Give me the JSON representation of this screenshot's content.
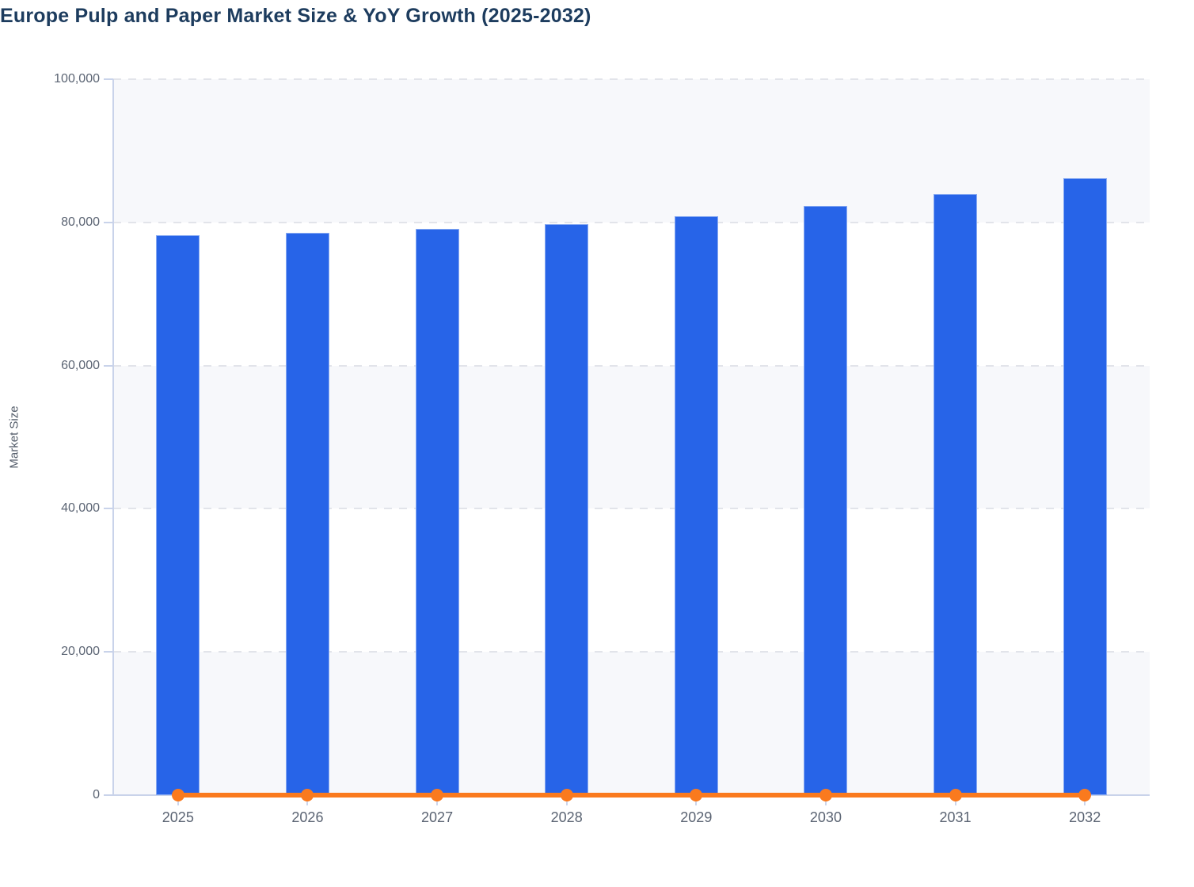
{
  "title": "Europe Pulp and Paper Market Size & YoY Growth (2025-2032)",
  "chart_data": {
    "type": "bar",
    "title": "Europe Pulp and Paper Market Size & YoY Growth (2025-2032)",
    "xlabel": "",
    "ylabel": "Market Size",
    "categories": [
      "2025",
      "2026",
      "2027",
      "2028",
      "2029",
      "2030",
      "2031",
      "2032"
    ],
    "series": [
      {
        "name": "Market Size",
        "type": "bar",
        "color": "#2764e8",
        "values": [
          78200,
          78500,
          79100,
          79800,
          80900,
          82300,
          84000,
          86200
        ]
      },
      {
        "name": "YoY Growth",
        "type": "line",
        "color": "#fa7a1e",
        "values": [
          0,
          0,
          0,
          0,
          0,
          0,
          0,
          0
        ],
        "note": "Growth line renders flat on the zero baseline of the left axis; no growth-value labels or secondary axis are visible in the image"
      }
    ],
    "ylim": [
      0,
      100000
    ],
    "y_ticks": [
      {
        "value": 0,
        "label": "0"
      },
      {
        "value": 20000,
        "label": "20,000"
      },
      {
        "value": 40000,
        "label": "40,000"
      },
      {
        "value": 60000,
        "label": "60,000"
      },
      {
        "value": 80000,
        "label": "80,000"
      },
      {
        "value": 100000,
        "label": "100,000"
      }
    ],
    "shaded_bands": [
      [
        0,
        20000
      ],
      [
        40000,
        60000
      ],
      [
        80000,
        100000
      ]
    ],
    "grid": "dashed horizontal gridlines at each y tick",
    "legend": "none"
  },
  "colors": {
    "bar": "#2764e8",
    "line": "#fa7a1e",
    "band": "#f7f8fb",
    "gridline": "#e2e4ea",
    "axis_line": "#c9d3ea",
    "tick_text": "#5b6473",
    "title_text": "#1d3c5e",
    "axis_label_text": "#555e6b",
    "background": "#ffffff"
  }
}
